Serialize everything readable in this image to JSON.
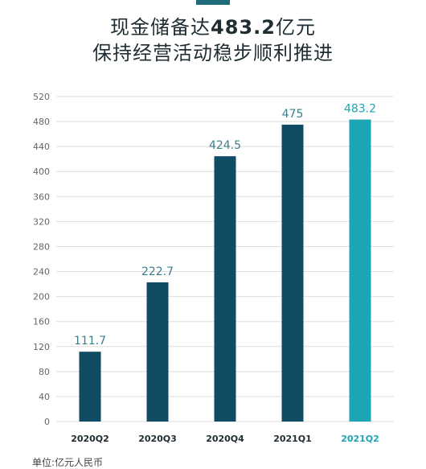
{
  "header": {
    "title_prefix": "现金储备达",
    "title_emphasis": "483.2",
    "title_suffix": "亿元",
    "subtitle": "保持经营活动稳步顺利推进"
  },
  "footer": {
    "unit_note": "单位:亿元人民币"
  },
  "colors": {
    "bar_primary": "#0f4b63",
    "bar_highlight": "#1ca6b5",
    "value_label": "#3b7f8c",
    "grid": "#dedede"
  },
  "chart_data": {
    "type": "bar",
    "title": "现金储备达483.2亿元",
    "subtitle": "保持经营活动稳步顺利推进",
    "categories": [
      "2020Q2",
      "2020Q3",
      "2020Q4",
      "2021Q1",
      "2021Q2"
    ],
    "values": [
      111.7,
      222.7,
      424.5,
      475,
      483.2
    ],
    "value_labels": [
      "111.7",
      "222.7",
      "424.5",
      "475",
      "483.2"
    ],
    "highlight_index": 4,
    "ylim": [
      0,
      520
    ],
    "yticks": [
      0,
      40,
      80,
      120,
      160,
      200,
      240,
      280,
      320,
      360,
      400,
      440,
      480,
      520
    ],
    "grid": true,
    "xlabel": "",
    "ylabel": ""
  }
}
